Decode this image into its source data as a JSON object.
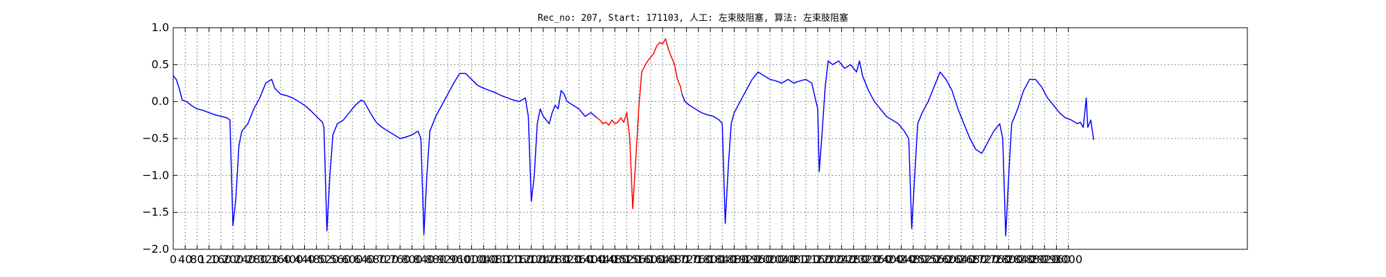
{
  "chart_data": {
    "type": "line",
    "title": "Rec_no: 207, Start: 171103, 人工: 左束肢阻塞, 算法: 左束肢阻塞",
    "xlabel": "",
    "ylabel": "",
    "xlim": [
      0,
      3600
    ],
    "ylim": [
      -2.0,
      1.0
    ],
    "grid": true,
    "x_ticks": [
      0,
      40,
      80,
      120,
      160,
      200,
      240,
      280,
      320,
      360,
      400,
      440,
      480,
      520,
      560,
      600,
      640,
      680,
      720,
      760,
      800,
      840,
      880,
      920,
      960,
      1000,
      1040,
      1080,
      1120,
      1160,
      1200,
      1240,
      1280,
      1320,
      1360,
      1400,
      1440,
      1480,
      1520,
      1560,
      1600,
      1640,
      1680,
      1720,
      1760,
      1800,
      1840,
      1880,
      1920,
      1960,
      2000,
      2040,
      2080,
      2120,
      2160,
      2200,
      2240,
      2280,
      2320,
      2360,
      2400,
      2440,
      2480,
      2520,
      2560,
      2600,
      2640,
      2680,
      2720,
      2760,
      2800,
      2840,
      2880,
      2920,
      2960,
      3000
    ],
    "y_ticks": [
      1.0,
      0.5,
      0.0,
      -0.5,
      -1.0,
      -1.5,
      -2.0
    ],
    "y_tick_labels": [
      "1.0",
      "0.5",
      "0.0",
      "−0.5",
      "−1.0",
      "−1.5",
      "−2.0"
    ],
    "series": [
      {
        "color": "#0000ff",
        "points": [
          [
            0,
            0.35
          ],
          [
            10,
            0.3
          ],
          [
            20,
            0.18
          ],
          [
            30,
            0.02
          ],
          [
            45,
            0.0
          ],
          [
            60,
            -0.05
          ],
          [
            80,
            -0.1
          ],
          [
            100,
            -0.12
          ],
          [
            120,
            -0.15
          ],
          [
            140,
            -0.18
          ],
          [
            160,
            -0.2
          ],
          [
            180,
            -0.22
          ],
          [
            190,
            -0.25
          ],
          [
            200,
            -1.68
          ],
          [
            210,
            -1.3
          ],
          [
            220,
            -0.6
          ],
          [
            230,
            -0.4
          ],
          [
            250,
            -0.3
          ],
          [
            270,
            -0.1
          ],
          [
            290,
            0.05
          ],
          [
            310,
            0.25
          ],
          [
            330,
            0.3
          ],
          [
            340,
            0.18
          ],
          [
            360,
            0.1
          ],
          [
            380,
            0.08
          ],
          [
            400,
            0.05
          ],
          [
            420,
            0.0
          ],
          [
            440,
            -0.05
          ],
          [
            460,
            -0.12
          ],
          [
            480,
            -0.2
          ],
          [
            500,
            -0.28
          ],
          [
            505,
            -0.35
          ],
          [
            515,
            -1.75
          ],
          [
            525,
            -1.0
          ],
          [
            535,
            -0.45
          ],
          [
            550,
            -0.3
          ],
          [
            570,
            -0.25
          ],
          [
            590,
            -0.15
          ],
          [
            610,
            -0.05
          ],
          [
            630,
            0.02
          ],
          [
            640,
            0.0
          ],
          [
            660,
            -0.15
          ],
          [
            680,
            -0.28
          ],
          [
            700,
            -0.35
          ],
          [
            720,
            -0.4
          ],
          [
            740,
            -0.45
          ],
          [
            760,
            -0.5
          ],
          [
            780,
            -0.48
          ],
          [
            800,
            -0.45
          ],
          [
            820,
            -0.4
          ],
          [
            830,
            -0.5
          ],
          [
            840,
            -1.8
          ],
          [
            850,
            -1.0
          ],
          [
            860,
            -0.4
          ],
          [
            880,
            -0.2
          ],
          [
            900,
            -0.05
          ],
          [
            920,
            0.1
          ],
          [
            940,
            0.25
          ],
          [
            960,
            0.38
          ],
          [
            980,
            0.38
          ],
          [
            1000,
            0.3
          ],
          [
            1020,
            0.22
          ],
          [
            1040,
            0.18
          ],
          [
            1060,
            0.15
          ],
          [
            1080,
            0.12
          ],
          [
            1100,
            0.08
          ],
          [
            1120,
            0.05
          ],
          [
            1140,
            0.02
          ],
          [
            1160,
            0.0
          ],
          [
            1180,
            0.05
          ],
          [
            1190,
            -0.2
          ],
          [
            1200,
            -1.35
          ],
          [
            1210,
            -1.0
          ],
          [
            1220,
            -0.3
          ],
          [
            1230,
            -0.1
          ],
          [
            1240,
            -0.2
          ],
          [
            1250,
            -0.25
          ],
          [
            1260,
            -0.3
          ],
          [
            1270,
            -0.15
          ],
          [
            1280,
            -0.05
          ],
          [
            1290,
            -0.1
          ],
          [
            1300,
            0.15
          ],
          [
            1310,
            0.1
          ],
          [
            1320,
            0.0
          ],
          [
            1340,
            -0.05
          ],
          [
            1360,
            -0.1
          ],
          [
            1380,
            -0.2
          ],
          [
            1400,
            -0.15
          ],
          [
            1420,
            -0.22
          ]
        ]
      },
      {
        "color": "#ff0000",
        "points": [
          [
            1420,
            -0.22
          ],
          [
            1430,
            -0.25
          ],
          [
            1440,
            -0.3
          ],
          [
            1450,
            -0.28
          ],
          [
            1460,
            -0.32
          ],
          [
            1470,
            -0.25
          ],
          [
            1480,
            -0.3
          ],
          [
            1490,
            -0.28
          ],
          [
            1500,
            -0.22
          ],
          [
            1510,
            -0.28
          ],
          [
            1520,
            -0.15
          ],
          [
            1530,
            -0.5
          ],
          [
            1540,
            -1.45
          ],
          [
            1550,
            -0.8
          ],
          [
            1560,
            -0.1
          ],
          [
            1570,
            0.4
          ],
          [
            1580,
            0.48
          ],
          [
            1590,
            0.55
          ],
          [
            1600,
            0.6
          ],
          [
            1610,
            0.65
          ],
          [
            1620,
            0.75
          ],
          [
            1630,
            0.8
          ],
          [
            1640,
            0.78
          ],
          [
            1650,
            0.85
          ],
          [
            1660,
            0.7
          ],
          [
            1670,
            0.6
          ],
          [
            1680,
            0.5
          ],
          [
            1690,
            0.3
          ],
          [
            1700,
            0.2
          ],
          [
            1705,
            0.1
          ]
        ]
      },
      {
        "color": "#0000ff",
        "points": [
          [
            1705,
            0.1
          ],
          [
            1715,
            0.0
          ],
          [
            1730,
            -0.05
          ],
          [
            1750,
            -0.1
          ],
          [
            1770,
            -0.15
          ],
          [
            1790,
            -0.18
          ],
          [
            1810,
            -0.2
          ],
          [
            1830,
            -0.25
          ],
          [
            1840,
            -0.3
          ],
          [
            1850,
            -1.65
          ],
          [
            1860,
            -0.9
          ],
          [
            1870,
            -0.3
          ],
          [
            1880,
            -0.15
          ],
          [
            1900,
            0.0
          ],
          [
            1920,
            0.15
          ],
          [
            1940,
            0.3
          ],
          [
            1960,
            0.4
          ],
          [
            1980,
            0.35
          ],
          [
            2000,
            0.3
          ],
          [
            2020,
            0.28
          ],
          [
            2040,
            0.25
          ],
          [
            2060,
            0.3
          ],
          [
            2080,
            0.25
          ],
          [
            2100,
            0.28
          ],
          [
            2120,
            0.3
          ],
          [
            2140,
            0.25
          ],
          [
            2160,
            -0.1
          ],
          [
            2165,
            -0.95
          ],
          [
            2175,
            -0.4
          ],
          [
            2185,
            0.2
          ],
          [
            2195,
            0.55
          ],
          [
            2210,
            0.5
          ],
          [
            2230,
            0.55
          ],
          [
            2250,
            0.45
          ],
          [
            2270,
            0.5
          ],
          [
            2290,
            0.4
          ],
          [
            2300,
            0.55
          ],
          [
            2310,
            0.35
          ],
          [
            2330,
            0.15
          ],
          [
            2350,
            0.0
          ],
          [
            2370,
            -0.1
          ],
          [
            2390,
            -0.2
          ],
          [
            2410,
            -0.25
          ],
          [
            2430,
            -0.3
          ],
          [
            2450,
            -0.4
          ],
          [
            2465,
            -0.5
          ],
          [
            2475,
            -1.72
          ],
          [
            2485,
            -1.0
          ],
          [
            2495,
            -0.3
          ],
          [
            2510,
            -0.15
          ],
          [
            2530,
            0.0
          ],
          [
            2550,
            0.2
          ],
          [
            2570,
            0.4
          ],
          [
            2590,
            0.3
          ],
          [
            2610,
            0.15
          ],
          [
            2630,
            -0.1
          ],
          [
            2650,
            -0.3
          ],
          [
            2670,
            -0.5
          ],
          [
            2690,
            -0.65
          ],
          [
            2710,
            -0.7
          ],
          [
            2730,
            -0.55
          ],
          [
            2750,
            -0.4
          ],
          [
            2770,
            -0.3
          ],
          [
            2780,
            -0.5
          ],
          [
            2790,
            -1.82
          ],
          [
            2800,
            -1.0
          ],
          [
            2810,
            -0.3
          ],
          [
            2830,
            -0.1
          ],
          [
            2850,
            0.15
          ],
          [
            2870,
            0.3
          ],
          [
            2890,
            0.3
          ],
          [
            2910,
            0.2
          ],
          [
            2930,
            0.05
          ],
          [
            2950,
            -0.05
          ],
          [
            2970,
            -0.15
          ],
          [
            2990,
            -0.22
          ],
          [
            3010,
            -0.25
          ],
          [
            3030,
            -0.3
          ],
          [
            3040,
            -0.28
          ],
          [
            3050,
            -0.35
          ],
          [
            3060,
            0.05
          ],
          [
            3065,
            -0.35
          ],
          [
            3075,
            -0.25
          ],
          [
            3085,
            -0.52
          ]
        ]
      }
    ]
  }
}
